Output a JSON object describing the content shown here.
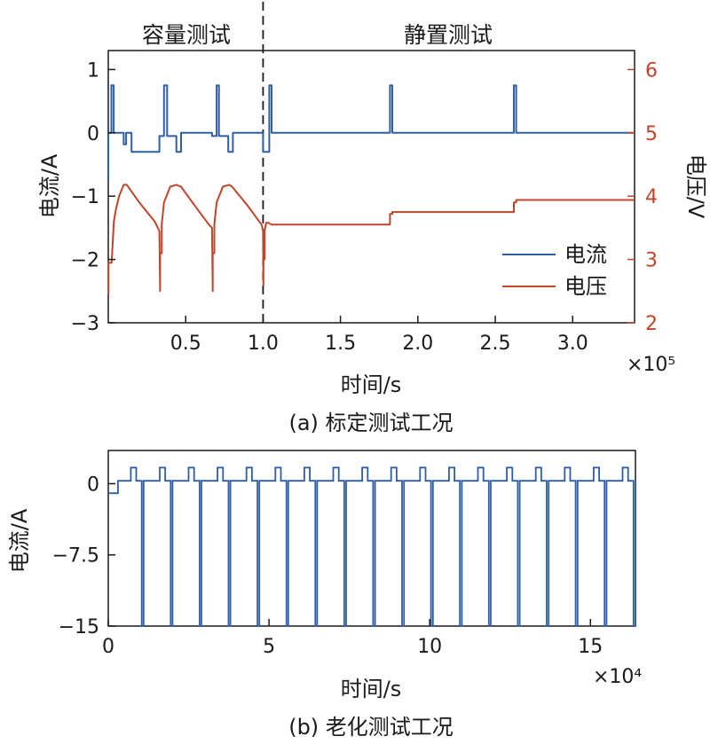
{
  "chart_data": [
    {
      "type": "line",
      "caption": "(a) 标定测试工况",
      "regions": [
        "容量测试",
        "静置测试"
      ],
      "region_divider_x": 1.0,
      "xlabel": "时间/s",
      "x_multiplier": "×10⁵",
      "x_range": [
        0,
        3.4
      ],
      "x_ticks": [
        0.5,
        1.0,
        1.5,
        2.0,
        2.5,
        3.0
      ],
      "x_tick_labels": [
        "0.5",
        "1.0",
        "1.5",
        "2.0",
        "2.5",
        "3.0"
      ],
      "ylabel_left": "电流/A",
      "ylim_left": [
        -3,
        1.3
      ],
      "y_ticks_left": [
        1,
        0,
        -1,
        -2,
        -3
      ],
      "y_tick_labels_left": [
        "1",
        "0",
        "−1",
        "−2",
        "−3"
      ],
      "ylabel_right": "电压/V",
      "ylim_right": [
        2,
        6.3
      ],
      "y_ticks_right": [
        6,
        5,
        4,
        3,
        2
      ],
      "y_tick_labels_right": [
        "6",
        "5",
        "4",
        "3",
        "2"
      ],
      "legend_position": "lower-right",
      "series": [
        {
          "name": "电流",
          "axis": "left",
          "color": "#2f5ea8",
          "x": [
            0,
            0.0002,
            0.0002,
            0.02,
            0.02,
            0.035,
            0.035,
            0.1,
            0.1,
            0.115,
            0.115,
            0.15,
            0.15,
            0.33,
            0.33,
            0.36,
            0.36,
            0.38,
            0.38,
            0.44,
            0.44,
            0.47,
            0.47,
            0.49,
            0.49,
            0.67,
            0.67,
            0.7,
            0.7,
            0.715,
            0.715,
            0.775,
            0.775,
            0.805,
            0.805,
            0.825,
            0.825,
            1.0,
            1.0,
            1.04,
            1.04,
            1.055,
            1.055,
            1.82,
            1.82,
            1.835,
            1.835,
            2.62,
            2.62,
            2.635,
            2.635,
            3.4
          ],
          "y": [
            -0.75,
            -0.75,
            0,
            0,
            0.75,
            0.75,
            0,
            0,
            -0.18,
            -0.18,
            0,
            0,
            -0.3,
            -0.3,
            -0.05,
            -0.05,
            0.75,
            0.75,
            -0.05,
            -0.05,
            -0.3,
            -0.3,
            0,
            0,
            0,
            0,
            -0.05,
            -0.05,
            0.75,
            0.75,
            -0.05,
            -0.05,
            -0.3,
            -0.3,
            0,
            0,
            0,
            0,
            -0.3,
            -0.3,
            0.75,
            0.75,
            0,
            0,
            0.75,
            0.75,
            0,
            0,
            0.75,
            0.75,
            0,
            0
          ]
        },
        {
          "name": "电压",
          "axis": "right",
          "color": "#c0452a",
          "x": [
            0,
            0.001,
            0.001,
            0.022,
            0.022,
            0.036,
            0.05,
            0.07,
            0.1,
            0.12,
            0.2,
            0.3,
            0.33,
            0.335,
            0.335,
            0.345,
            0.345,
            0.36,
            0.4,
            0.44,
            0.47,
            0.55,
            0.65,
            0.67,
            0.675,
            0.675,
            0.685,
            0.685,
            0.7,
            0.74,
            0.78,
            0.8,
            0.9,
            0.99,
            1.0,
            1.002,
            1.002,
            1.01,
            1.01,
            1.02,
            1.035,
            1.055,
            1.06,
            1.82,
            1.82,
            1.835,
            1.835,
            2.62,
            2.62,
            2.635,
            2.635,
            3.4
          ],
          "y": [
            2.45,
            2.45,
            2.95,
            2.95,
            2.95,
            3.6,
            3.8,
            4.0,
            4.18,
            4.18,
            3.9,
            3.6,
            3.45,
            2.5,
            3.1,
            3.1,
            3.55,
            3.9,
            4.15,
            4.18,
            4.15,
            3.88,
            3.55,
            3.5,
            2.5,
            3.1,
            3.1,
            3.55,
            3.9,
            4.15,
            4.18,
            4.15,
            3.85,
            3.55,
            3.45,
            2.6,
            3.0,
            3.0,
            3.45,
            3.58,
            3.58,
            3.55,
            3.55,
            3.55,
            3.72,
            3.72,
            3.75,
            3.75,
            3.9,
            3.9,
            3.94,
            3.94
          ]
        }
      ]
    },
    {
      "type": "line",
      "caption": "(b) 老化测试工况",
      "xlabel": "时间/s",
      "x_multiplier": "×10⁴",
      "x_range": [
        0,
        16.4
      ],
      "x_ticks": [
        0,
        5,
        10,
        15
      ],
      "x_tick_labels": [
        "0",
        "5",
        "10",
        "15"
      ],
      "ylabel": "电流/A",
      "ylim": [
        -15,
        3.5
      ],
      "y_ticks": [
        0,
        -7.5,
        -15
      ],
      "y_tick_labels": [
        "0",
        "−7.5",
        "−15"
      ],
      "series": [
        {
          "name": "电流",
          "color": "#2f5ea8",
          "pulse_start": 0.7,
          "pulse_period": 0.9,
          "pulse_count": 18,
          "levels": {
            "rest": 0.3,
            "charge": 1.7,
            "discharge": -15,
            "initial": -1.0
          }
        }
      ]
    }
  ],
  "legend": {
    "current_label": "电流",
    "voltage_label": "电压"
  }
}
